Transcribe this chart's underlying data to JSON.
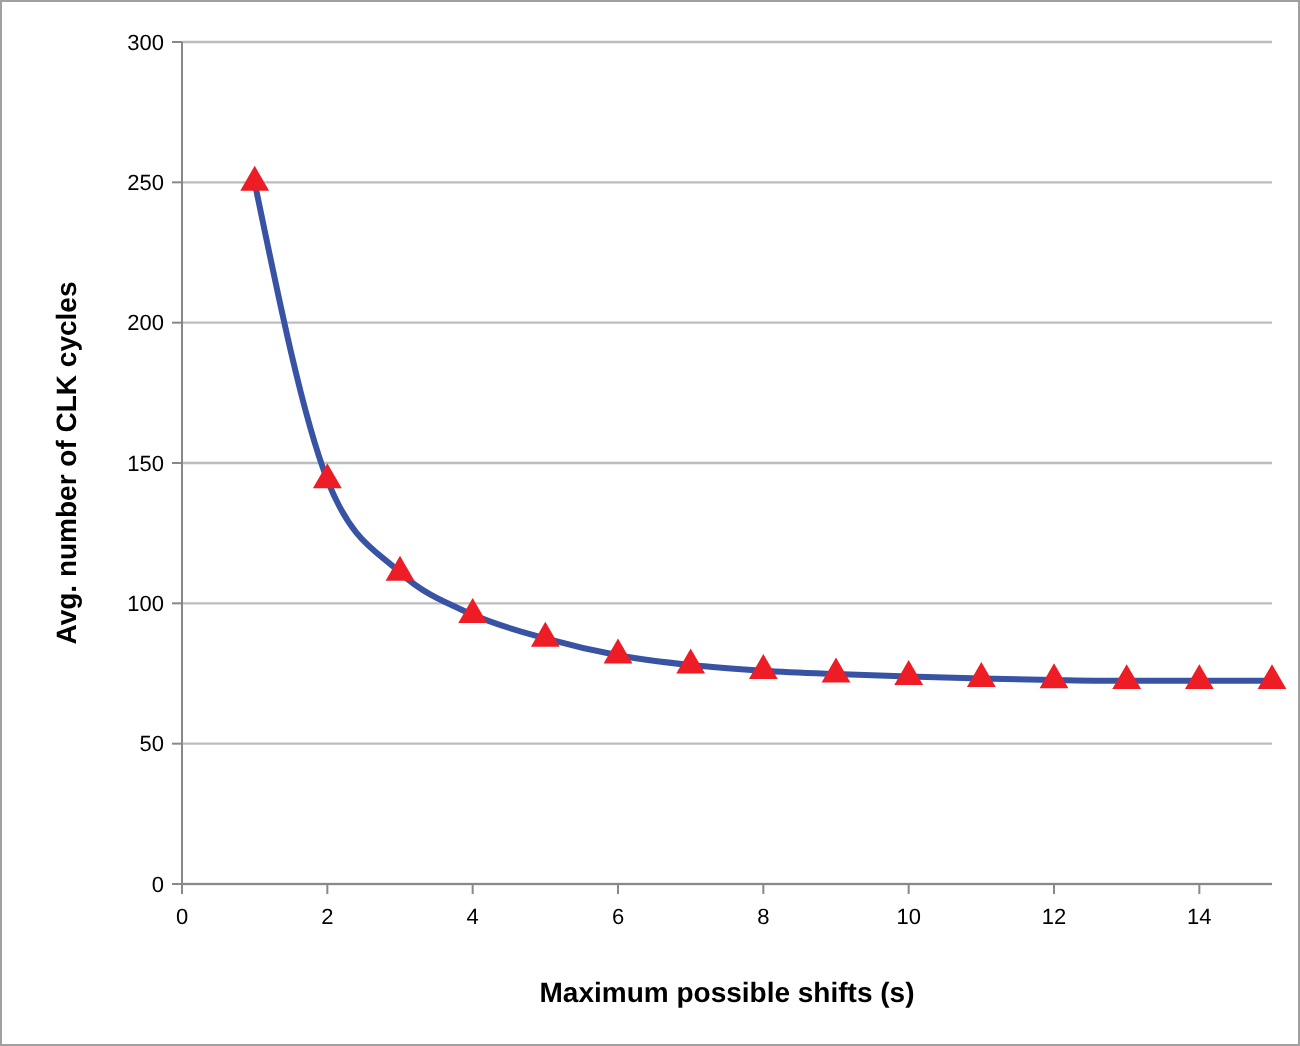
{
  "chart_data": {
    "type": "line",
    "xlabel": "Maximum possible shifts (s)",
    "ylabel": "Avg. number of CLK cycles",
    "x": [
      1,
      2,
      3,
      4,
      5,
      6,
      7,
      8,
      9,
      10,
      11,
      12,
      13,
      14,
      15
    ],
    "series": [
      {
        "color": "#3953a4",
        "marker": "none",
        "values": [
          250,
          144,
          111,
          96,
          87.5,
          81.5,
          78,
          76,
          74.8,
          73.9,
          73.2,
          72.7,
          72.4,
          72.4,
          72.4
        ]
      },
      {
        "type": "scatter",
        "color": "#ee1c25",
        "values": [
          250,
          144,
          111,
          96,
          87.5,
          81.5,
          78,
          76,
          74.8,
          73.9,
          73.2,
          72.7,
          72.4,
          72.4,
          72.4
        ]
      }
    ],
    "xlim": [
      0,
      15
    ],
    "xticks": [
      0,
      2,
      4,
      6,
      8,
      10,
      12,
      14
    ],
    "ylim": [
      0,
      300
    ],
    "yticks": [
      0,
      50,
      100,
      150,
      200,
      250,
      300
    ],
    "grid": "y",
    "marker": "triangle",
    "line_style": "solid"
  }
}
